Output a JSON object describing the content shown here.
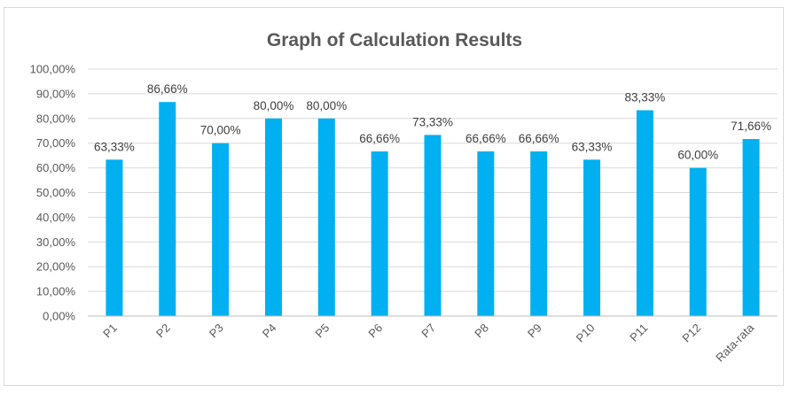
{
  "chart_data": {
    "type": "bar",
    "title": "Graph of Calculation Results",
    "categories": [
      "P1",
      "P2",
      "P3",
      "P4",
      "P5",
      "P6",
      "P7",
      "P8",
      "P9",
      "P10",
      "P11",
      "P12",
      "Rata-rata"
    ],
    "values": [
      63.33,
      86.66,
      70.0,
      80.0,
      80.0,
      66.66,
      73.33,
      66.66,
      66.66,
      63.33,
      83.33,
      60.0,
      71.66
    ],
    "data_labels": [
      "63,33%",
      "86,66%",
      "70,00%",
      "80,00%",
      "80,00%",
      "66,66%",
      "73,33%",
      "66,66%",
      "66,66%",
      "63,33%",
      "83,33%",
      "60,00%",
      "71,66%"
    ],
    "y_ticks": [
      "0,00%",
      "10,00%",
      "20,00%",
      "30,00%",
      "40,00%",
      "50,00%",
      "60,00%",
      "70,00%",
      "80,00%",
      "90,00%",
      "100,00%"
    ],
    "ylim": [
      0,
      100
    ],
    "xlabel": "",
    "ylabel": "",
    "grid": true,
    "legend": "none",
    "bar_color": "#00b0f0"
  }
}
